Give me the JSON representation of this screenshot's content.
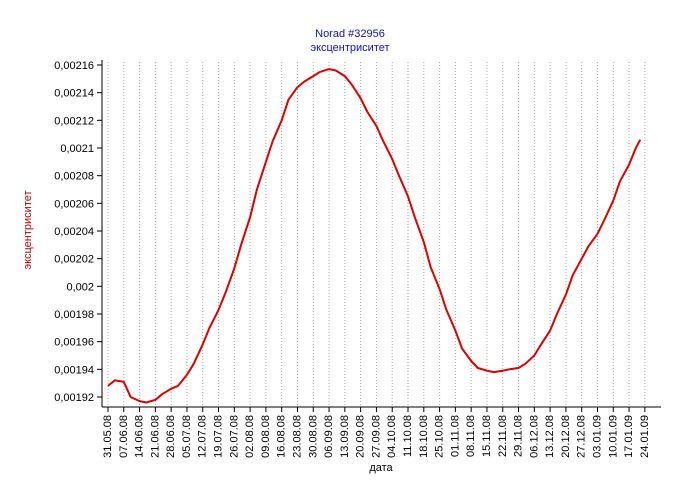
{
  "chart_data": {
    "type": "line",
    "title": "Norad #32956",
    "subtitle": "эксцентриситет",
    "xlabel": "дата",
    "ylabel": "эксцентриситет",
    "ylim": [
      0.00191,
      0.002165
    ],
    "yticks": [
      "0,00216",
      "0,00214",
      "0,00212",
      "0,0021",
      "0,00208",
      "0,00206",
      "0,00204",
      "0,00202",
      "0,002",
      "0,00198",
      "0,00196",
      "0,00194",
      "0,00192"
    ],
    "ytick_values": [
      0.00216,
      0.00214,
      0.00212,
      0.0021,
      0.00208,
      0.00206,
      0.00204,
      0.00202,
      0.002,
      0.00198,
      0.00196,
      0.00194,
      0.00192
    ],
    "xticks": [
      "31.05.08",
      "07.06.08",
      "14.06.08",
      "21.06.08",
      "28.06.08",
      "05.07.08",
      "12.07.08",
      "19.07.08",
      "26.07.08",
      "02.08.08",
      "09.08.08",
      "16.08.08",
      "23.08.08",
      "30.08.08",
      "06.09.08",
      "13.09.08",
      "20.09.08",
      "27.09.08",
      "04.10.08",
      "11.10.08",
      "18.10.08",
      "25.10.08",
      "01.11.08",
      "08.11.08",
      "15.11.08",
      "22.11.08",
      "29.11.08",
      "06.12.08",
      "13.12.08",
      "20.12.08",
      "27.12.08",
      "03.01.09",
      "10.01.09",
      "17.01.09",
      "24.01.09"
    ],
    "grid": "vertical dotted",
    "line_color": "#e00000",
    "series": [
      {
        "x": [
          "31.05.08",
          "03.06.08",
          "07.06.08",
          "10.06.08",
          "14.06.08",
          "17.06.08",
          "21.06.08",
          "24.06.08",
          "28.06.08",
          "01.07.08",
          "05.07.08",
          "08.07.08",
          "12.07.08",
          "15.07.08",
          "19.07.08",
          "22.07.08",
          "26.07.08",
          "29.07.08",
          "02.08.08",
          "05.08.08",
          "09.08.08",
          "12.08.08",
          "16.08.08",
          "19.08.08",
          "23.08.08",
          "26.08.08",
          "30.08.08",
          "02.09.08",
          "06.09.08",
          "09.09.08",
          "13.09.08",
          "16.09.08",
          "20.09.08",
          "23.09.08",
          "27.09.08",
          "30.09.08",
          "04.10.08",
          "07.10.08",
          "11.10.08",
          "14.10.08",
          "18.10.08",
          "21.10.08",
          "25.10.08",
          "28.10.08",
          "01.11.08",
          "04.11.08",
          "08.11.08",
          "11.11.08",
          "15.11.08",
          "18.11.08",
          "22.11.08",
          "25.11.08",
          "29.11.08",
          "02.12.08",
          "06.12.08",
          "09.12.08",
          "13.12.08",
          "16.12.08",
          "20.12.08",
          "23.12.08",
          "27.12.08",
          "30.12.08",
          "03.01.09",
          "06.01.09",
          "10.01.09",
          "13.01.09",
          "17.01.09",
          "20.01.09",
          "22.01.09"
        ],
        "values": [
          0.001928,
          0.001932,
          0.001931,
          0.00192,
          0.001917,
          0.001916,
          0.001918,
          0.001922,
          0.001926,
          0.001928,
          0.001936,
          0.001944,
          0.001958,
          0.00197,
          0.001983,
          0.001995,
          0.002013,
          0.00203,
          0.00205,
          0.00207,
          0.00209,
          0.002105,
          0.00212,
          0.002135,
          0.002144,
          0.002148,
          0.002152,
          0.002155,
          0.002157,
          0.002156,
          0.002152,
          0.002146,
          0.002136,
          0.002126,
          0.002116,
          0.002105,
          0.002092,
          0.00208,
          0.002065,
          0.00205,
          0.002032,
          0.002014,
          0.001998,
          0.001983,
          0.001968,
          0.001955,
          0.001946,
          0.001941,
          0.001939,
          0.001938,
          0.001939,
          0.00194,
          0.001941,
          0.001944,
          0.00195,
          0.001958,
          0.001968,
          0.00198,
          0.001994,
          0.002008,
          0.00202,
          0.002029,
          0.002038,
          0.002048,
          0.002062,
          0.002076,
          0.002088,
          0.0021,
          0.002106
        ]
      }
    ]
  }
}
